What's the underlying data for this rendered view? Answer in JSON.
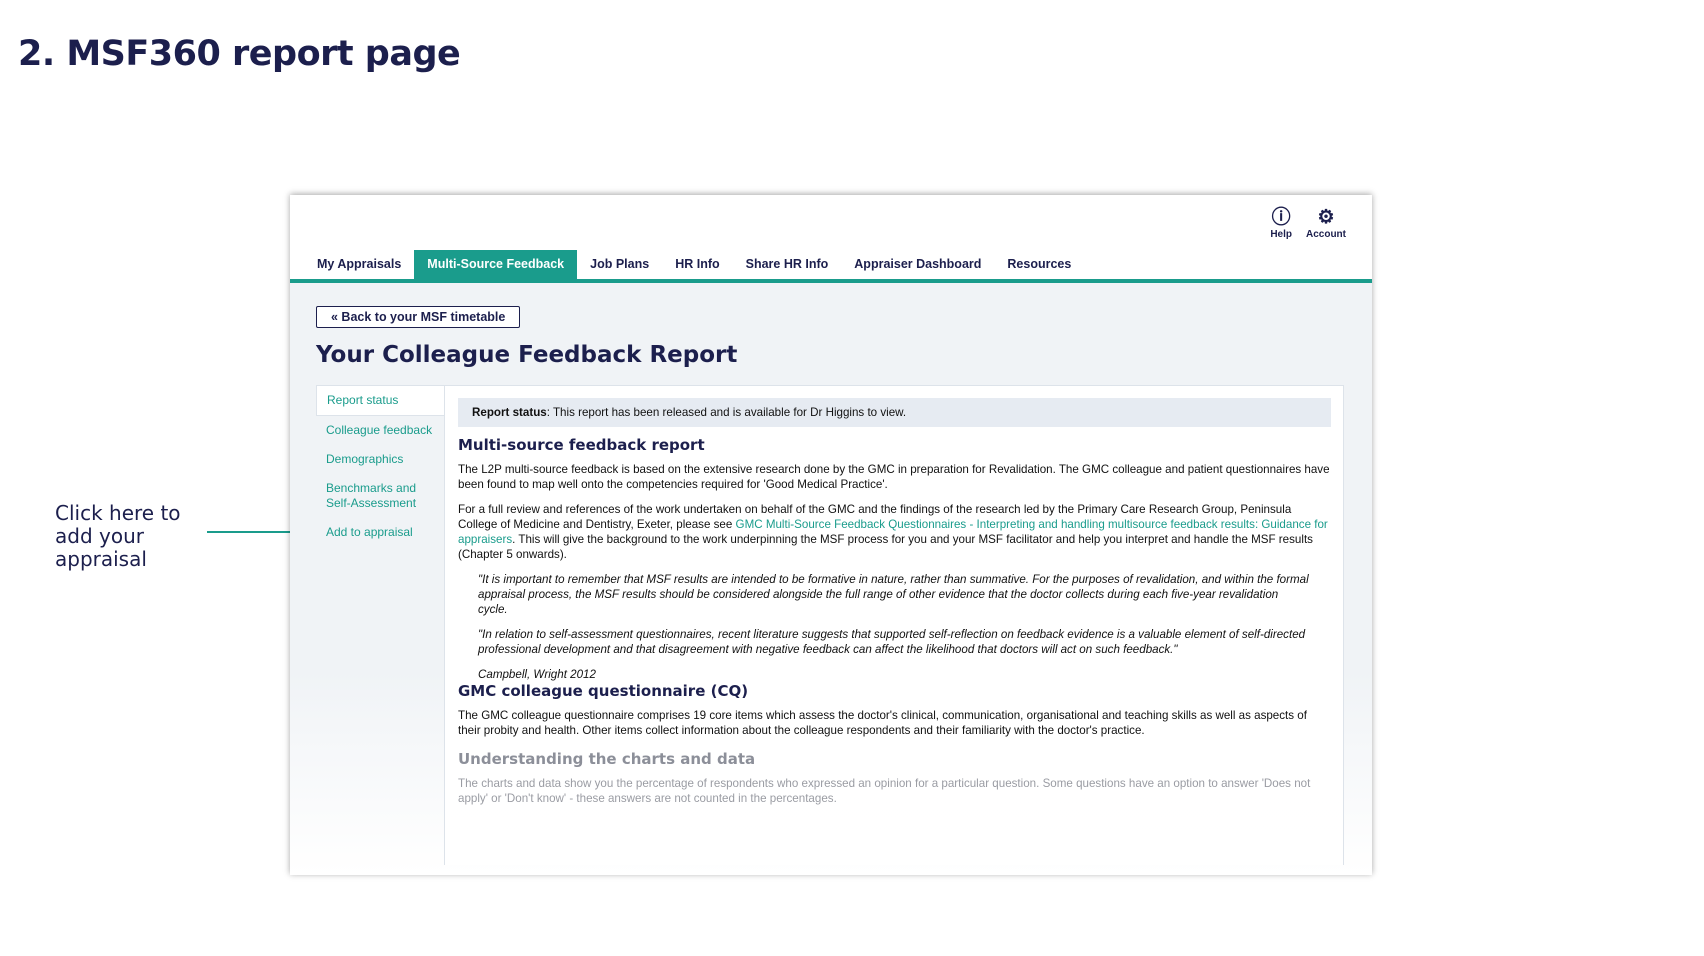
{
  "slide": {
    "title": "2. MSF360 report page",
    "annotation": "Click here to add your appraisal"
  },
  "header": {
    "help": "Help",
    "account": "Account",
    "help_icon": "question-circle",
    "account_icon": "gear"
  },
  "nav": {
    "tabs": [
      "My Appraisals",
      "Multi-Source Feedback",
      "Job Plans",
      "HR Info",
      "Share HR Info",
      "Appraiser Dashboard",
      "Resources"
    ],
    "active": "Multi-Source Feedback"
  },
  "back_button": "« Back to your MSF timetable",
  "page_title": "Your Colleague Feedback Report",
  "sidebar": [
    "Report status",
    "Colleague feedback",
    "Demographics",
    "Benchmarks and Self-Assessment",
    "Add to appraisal"
  ],
  "status": {
    "label": "Report status",
    "text": ": This report has been released and is available for Dr Higgins to view."
  },
  "content": {
    "h_msf": "Multi-source feedback report",
    "p1": "The L2P multi-source feedback is based on the extensive research done by the GMC in preparation for Revalidation. The GMC colleague and patient questionnaires have been found to map well onto the competencies required for 'Good Medical Practice'.",
    "p2a": "For a full review and references of the work undertaken on behalf of the GMC and the findings of the research led by the Primary Care Research Group, Peninsula College of Medicine and Dentistry, Exeter, please see ",
    "p2link": "GMC Multi-Source Feedback Questionnaires - Interpreting and handling multisource feedback results: Guidance for appraisers",
    "p2b": ". This will give the background to the work underpinning the MSF process for you and your MSF facilitator and help you interpret and handle the MSF results (Chapter 5 onwards).",
    "q1": "\"It is important to remember that MSF results are intended to be formative in nature, rather than summative. For the purposes of revalidation, and within the formal appraisal process, the MSF results should be considered alongside the full range of other evidence that the doctor collects during each five-year revalidation cycle.",
    "q2": "\"In relation to self-assessment questionnaires, recent literature suggests that supported self-reflection on feedback evidence is a valuable element of self-directed professional development and that disagreement with negative feedback can affect the likelihood that doctors will act on such feedback.\"",
    "cite": "Campbell, Wright 2012",
    "h_cq": "GMC colleague questionnaire (CQ)",
    "p3": "The GMC colleague questionnaire comprises 19 core items which assess the doctor's clinical, communication, organisational and teaching skills as well as aspects of their probity and health. Other items collect information about the colleague respondents and their familiarity with the doctor's practice.",
    "h_charts": "Understanding the charts and data",
    "p4": "The charts and data show you the percentage of respondents who expressed an opinion for a particular question. Some questions have an option to answer 'Does not apply' or 'Don't know' - these answers are not counted in the percentages."
  },
  "colors": {
    "brand": "#1a9c8c",
    "navy": "#1c1f4d"
  }
}
